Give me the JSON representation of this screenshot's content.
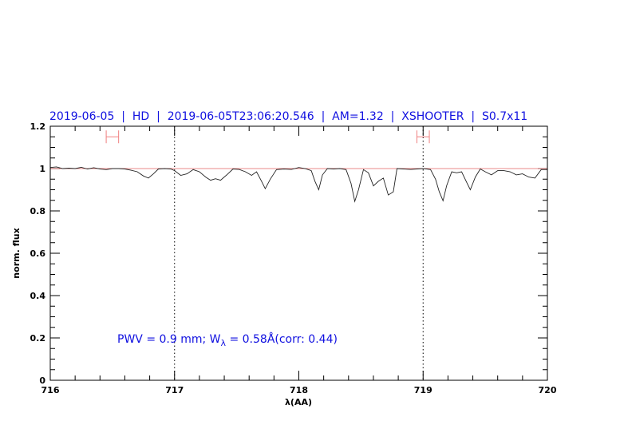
{
  "chart_data": {
    "type": "line",
    "title": "2019-06-05  |  HD  |  2019-06-05T23:06:20.546  |  AM=1.32  |  XSHOOTER  |  S0.7x11",
    "xlabel": "λ(AA)",
    "ylabel": "norm. flux",
    "xlim": [
      716,
      720
    ],
    "ylim": [
      0,
      1.2
    ],
    "xticks": [
      "716",
      "717",
      "718",
      "719",
      "720"
    ],
    "yticks": [
      "0",
      "0.2",
      "0.4",
      "0.6",
      "0.8",
      "1",
      "1.2"
    ],
    "grid": false,
    "continuum_level": 1.0,
    "vertical_markers": [
      717,
      719
    ],
    "error_bars": [
      {
        "x_from": 716.45,
        "x_to": 716.55,
        "y": 1.15
      },
      {
        "x_from": 718.95,
        "x_to": 719.05,
        "y": 1.15
      }
    ],
    "annotation": {
      "prefix": "PWV = 0.9 mm; W",
      "subscript": "λ",
      "suffix": " = 0.58Å(corr: 0.44)"
    },
    "series": [
      {
        "x": [
          716.0,
          716.05,
          716.1,
          716.15,
          716.2,
          716.25,
          716.3,
          716.35,
          716.4,
          716.45,
          716.5,
          716.55,
          716.6,
          716.65,
          716.7,
          716.75,
          716.79,
          716.83,
          716.87,
          716.92,
          716.97,
          717.0,
          717.05,
          717.1,
          717.15,
          717.2,
          717.25,
          717.29,
          717.33,
          717.37,
          717.42,
          717.47,
          717.52,
          717.57,
          717.62,
          717.66,
          717.7,
          717.73,
          717.77,
          717.82,
          717.88,
          717.94,
          718.0,
          718.05,
          718.1,
          718.13,
          718.16,
          718.19,
          718.23,
          718.28,
          718.33,
          718.38,
          718.42,
          718.45,
          718.48,
          718.52,
          718.56,
          718.6,
          718.64,
          718.68,
          718.72,
          718.76,
          718.79,
          718.84,
          718.9,
          718.95,
          719.0,
          719.03,
          719.06,
          719.1,
          719.13,
          719.16,
          719.19,
          719.23,
          719.27,
          719.31,
          719.35,
          719.38,
          719.42,
          719.46,
          719.5,
          719.55,
          719.6,
          719.65,
          719.7,
          719.75,
          719.8,
          719.85,
          719.9,
          719.95,
          720.0
        ],
        "y": [
          1.005,
          1.008,
          1.0,
          1.002,
          1.0,
          1.006,
          0.998,
          1.004,
          0.998,
          0.995,
          1.0,
          1.0,
          0.998,
          0.992,
          0.985,
          0.965,
          0.955,
          0.975,
          0.998,
          1.0,
          0.998,
          0.99,
          0.968,
          0.975,
          0.995,
          0.985,
          0.96,
          0.945,
          0.952,
          0.945,
          0.97,
          0.998,
          0.996,
          0.985,
          0.968,
          0.985,
          0.94,
          0.905,
          0.95,
          0.995,
          0.998,
          0.996,
          1.005,
          1.0,
          0.99,
          0.94,
          0.9,
          0.97,
          1.0,
          0.998,
          1.0,
          0.995,
          0.93,
          0.845,
          0.9,
          0.995,
          0.98,
          0.918,
          0.94,
          0.955,
          0.875,
          0.89,
          1.0,
          0.998,
          0.996,
          0.998,
          1.0,
          0.998,
          0.995,
          0.95,
          0.89,
          0.848,
          0.92,
          0.985,
          0.98,
          0.985,
          0.935,
          0.9,
          0.96,
          0.998,
          0.985,
          0.97,
          0.99,
          0.99,
          0.985,
          0.97,
          0.975,
          0.96,
          0.955,
          0.995,
          0.995
        ]
      }
    ]
  }
}
